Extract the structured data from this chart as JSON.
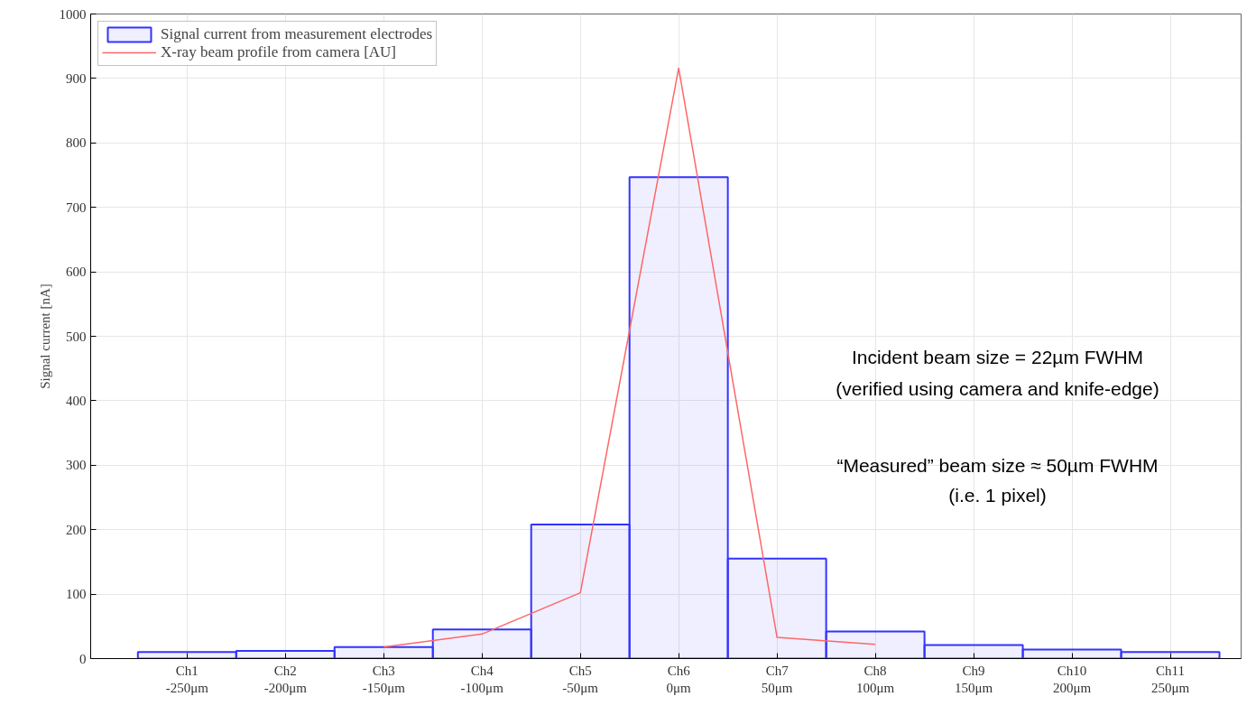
{
  "chart_data": {
    "type": "bar",
    "ylabel": "Signal current [nA]",
    "categories": [
      "Ch1\n-250μm",
      "Ch2\n-200μm",
      "Ch3\n-150μm",
      "Ch4\n-100μm",
      "Ch5\n-50μm",
      "Ch6\n0μm",
      "Ch7\n50μm",
      "Ch8\n100μm",
      "Ch9\n150μm",
      "Ch10\n200μm",
      "Ch11\n250μm"
    ],
    "ylim": [
      0,
      1000
    ],
    "yticks": [
      0,
      100,
      200,
      300,
      400,
      500,
      600,
      700,
      800,
      900,
      1000
    ],
    "series": [
      {
        "name": "Signal current from measurement electrodes",
        "color": "#3333ff",
        "values": [
          10,
          12,
          18,
          45,
          208,
          747,
          155,
          42,
          21,
          14,
          10
        ]
      },
      {
        "name": "X-ray beam profile from camera [AU]",
        "type": "line",
        "color": "#ff6666",
        "values": [
          null,
          null,
          18,
          38,
          102,
          916,
          33,
          22,
          null,
          null,
          null
        ]
      }
    ],
    "annotations": [
      "Incident beam size = 22µm FWHM",
      "(verified using camera and knife-edge)",
      "“Measured” beam size ≈ 50µm FWHM",
      "(i.e. 1 pixel)"
    ],
    "grid": true,
    "legend": "top left"
  }
}
